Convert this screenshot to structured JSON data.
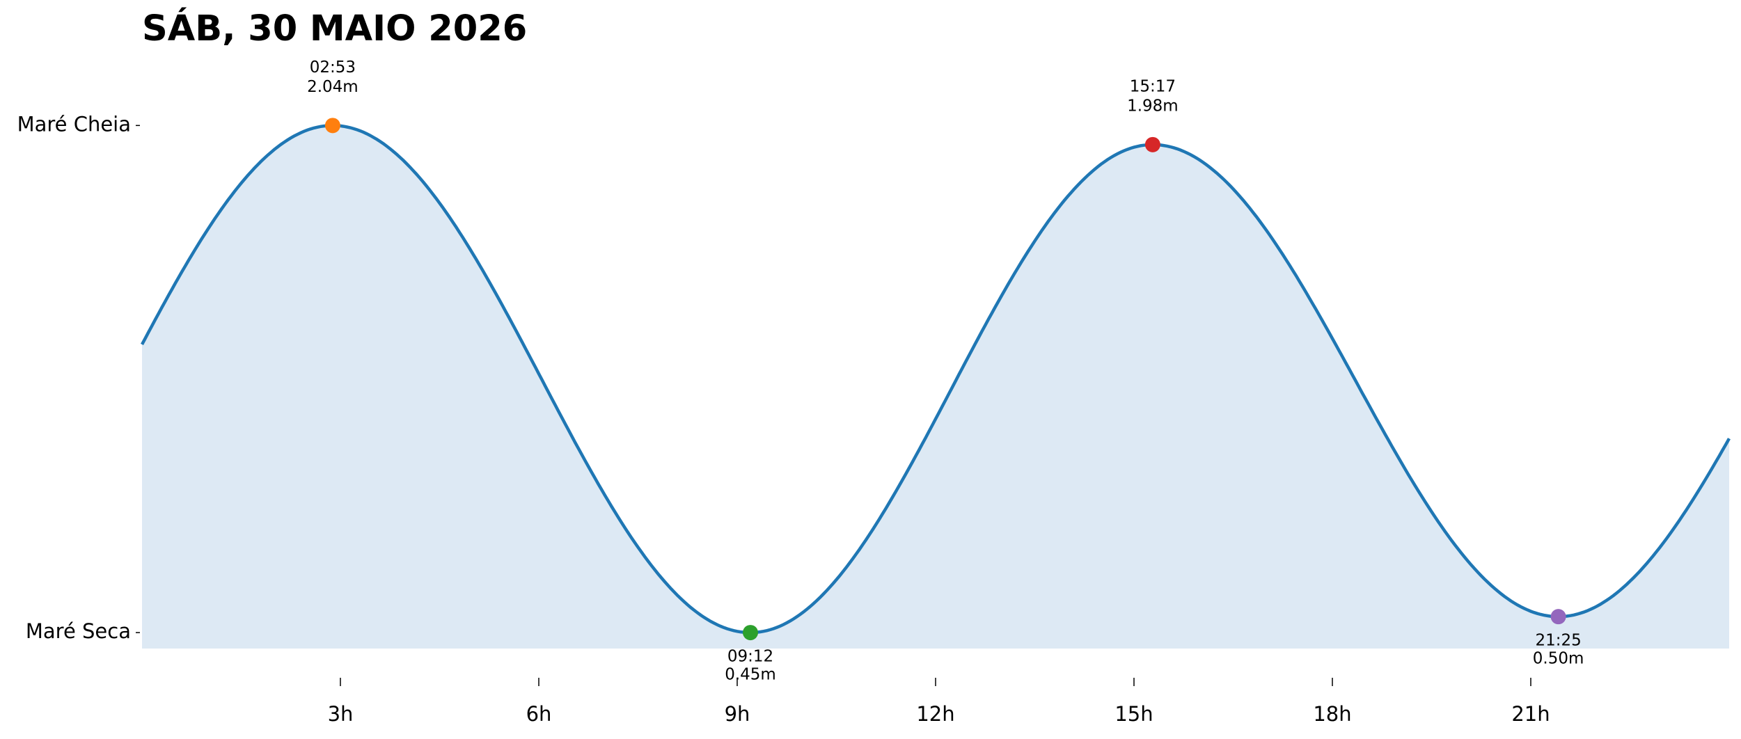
{
  "chart_data": {
    "type": "line",
    "title": "SÁB, 30 MAIO 2026",
    "xlim": [
      0,
      24
    ],
    "xticks": [
      {
        "value": 3,
        "label": "3h"
      },
      {
        "value": 6,
        "label": "6h"
      },
      {
        "value": 9,
        "label": "9h"
      },
      {
        "value": 12,
        "label": "12h"
      },
      {
        "value": 15,
        "label": "15h"
      },
      {
        "value": 18,
        "label": "18h"
      },
      {
        "value": 21,
        "label": "21h"
      }
    ],
    "ylim": [
      0.4,
      2.2
    ],
    "yticks": [
      {
        "value": 2.04,
        "label": "Maré Cheia"
      },
      {
        "value": 0.45,
        "label": "Maré Seca"
      }
    ],
    "line_color": "#1f77b4",
    "fill_color": "#dde9f4",
    "x": [
      {
        "value": 2.883,
        "label": "02:53"
      },
      {
        "value": 9.2,
        "label": "09:12"
      },
      {
        "value": 15.283,
        "label": "15:17"
      },
      {
        "value": 21.417,
        "label": "21:25"
      }
    ],
    "series": [
      {
        "values": [
          2.04,
          0.45,
          1.98,
          0.5
        ],
        "value_labels": [
          "2.04m",
          "0.45m",
          "1.98m",
          "0.50m"
        ],
        "point_colors": [
          "#ff7f0e",
          "#2ca02c",
          "#d62728",
          "#9467bd"
        ]
      }
    ]
  }
}
